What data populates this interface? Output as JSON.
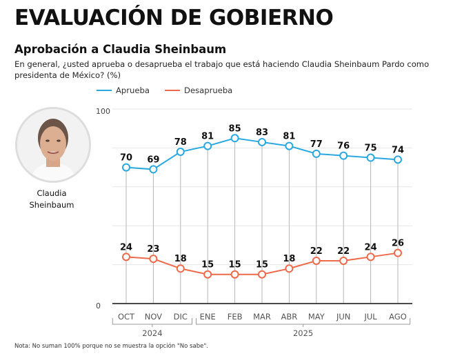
{
  "header": {
    "title": "EVALUACIÓN DE GOBIERNO",
    "subtitle": "Aprobación a Claudia Sheinbaum",
    "question": "En general, ¿usted aprueba o desaprueba el trabajo que está haciendo Claudia Sheinbaum Pardo como presidenta de México? (%)"
  },
  "person": {
    "name_line1": "Claudia",
    "name_line2": "Sheinbaum"
  },
  "note": "Nota: No suman 100% porque no se muestra la opción \"No sabe\".",
  "chart_data": {
    "type": "line",
    "categories": [
      "OCT",
      "NOV",
      "DIC",
      "ENE",
      "FEB",
      "MAR",
      "ABR",
      "MAY",
      "JUN",
      "JUL",
      "AGO"
    ],
    "year_groups": [
      {
        "label": "2024",
        "from": 0,
        "to": 2
      },
      {
        "label": "2025",
        "from": 3,
        "to": 10
      }
    ],
    "series": [
      {
        "name": "Aprueba",
        "color": "#29a8e0",
        "values": [
          70,
          69,
          78,
          81,
          85,
          83,
          81,
          77,
          76,
          75,
          74
        ]
      },
      {
        "name": "Desaprueba",
        "color": "#ef6a4a",
        "values": [
          24,
          23,
          18,
          15,
          15,
          15,
          18,
          22,
          22,
          24,
          26
        ]
      }
    ],
    "ylim": [
      0,
      100
    ],
    "yticks": [
      "0",
      "100"
    ],
    "grid": true,
    "legend": "top-left"
  }
}
